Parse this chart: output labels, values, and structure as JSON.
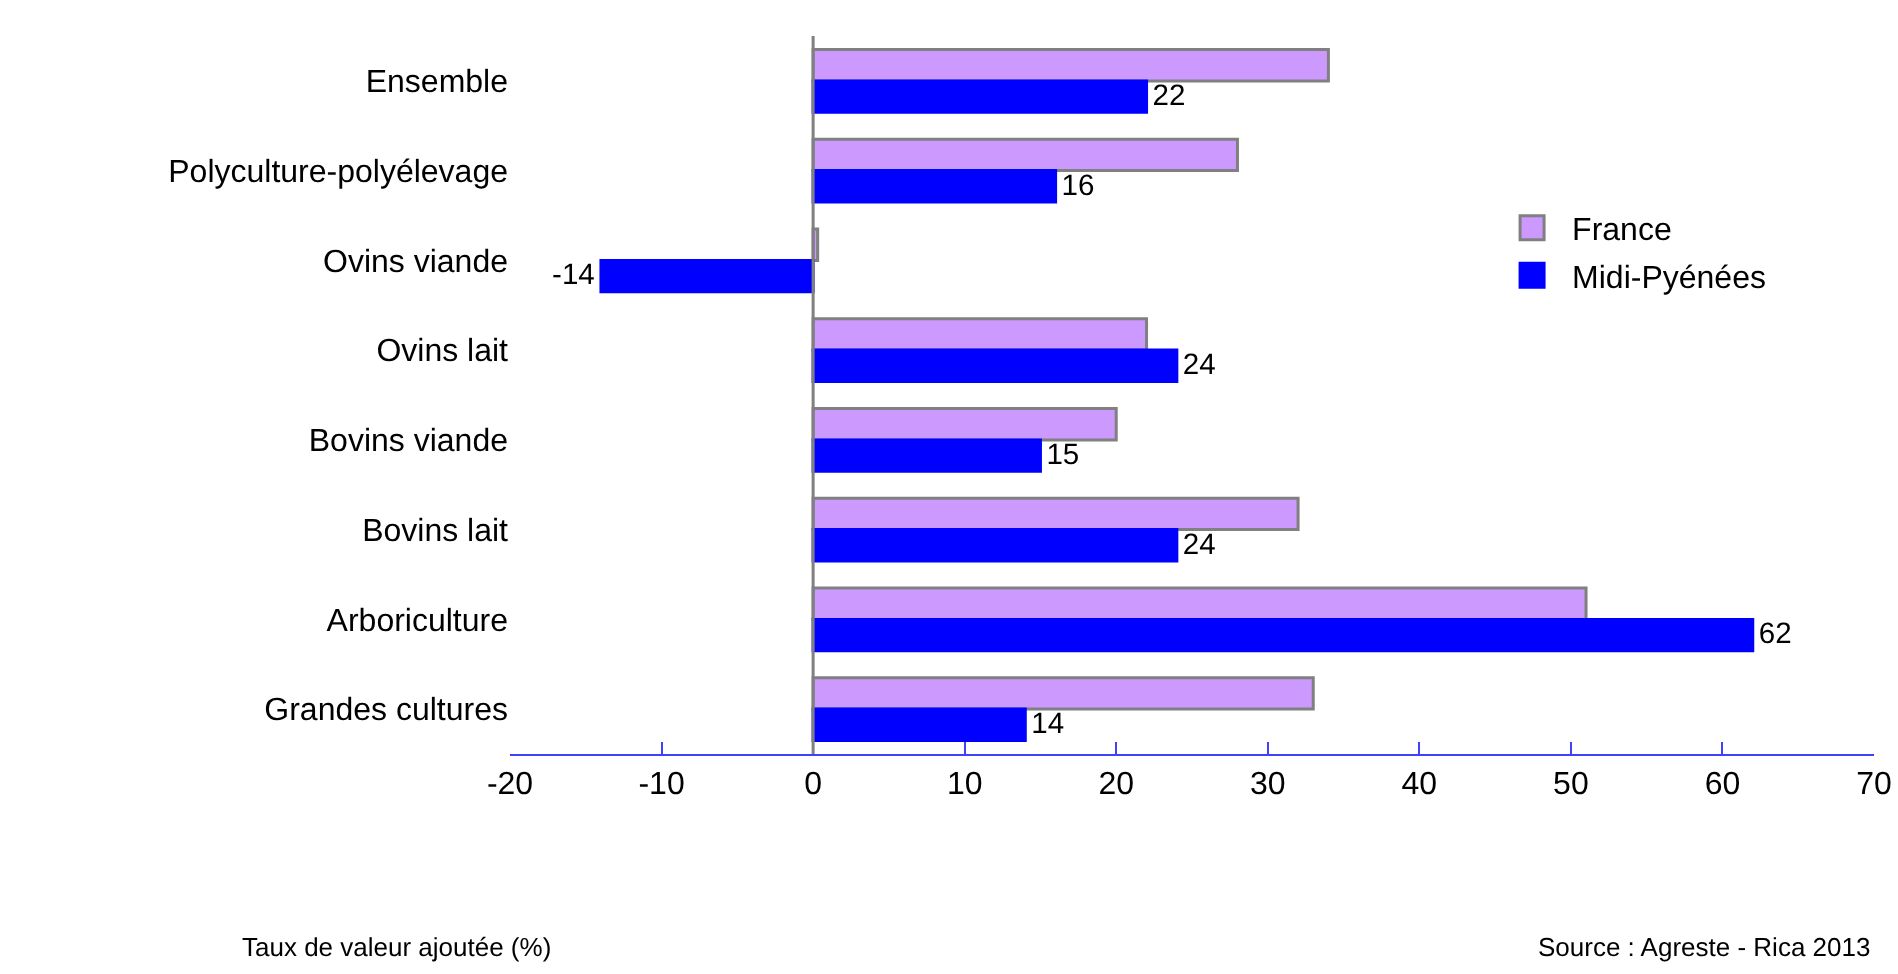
{
  "chart_data": {
    "type": "bar",
    "orientation": "horizontal",
    "xlabel": "Taux de valeur ajoutée (%)",
    "categories": [
      "Ensemble",
      "Polyculture-polyélevage",
      "Ovins viande",
      "Ovins lait",
      "Bovins viande",
      "Bovins lait",
      "Arboriculture",
      "Grandes cultures"
    ],
    "series": [
      {
        "name": "France",
        "color": "#cc99ff",
        "values": [
          34,
          28,
          0.3,
          22,
          20,
          32,
          51,
          33
        ]
      },
      {
        "name": "Midi-Pyénées",
        "color": "#0000ff",
        "values": [
          22,
          16,
          -14,
          24,
          15,
          24,
          62,
          14
        ],
        "value_labels": [
          "22",
          "16",
          "-14",
          "24",
          "15",
          "24",
          "62",
          "14"
        ]
      }
    ],
    "ref_lines": [
      {
        "axis": "x",
        "value": 0,
        "color": "#808080"
      }
    ],
    "xlim": [
      -20,
      70
    ],
    "xticks": [
      -20,
      -10,
      0,
      10,
      20,
      30,
      40,
      50,
      60,
      70
    ],
    "grid": false,
    "legend": "right",
    "annotations": [
      "Source : Agreste - Rica 2013"
    ]
  }
}
